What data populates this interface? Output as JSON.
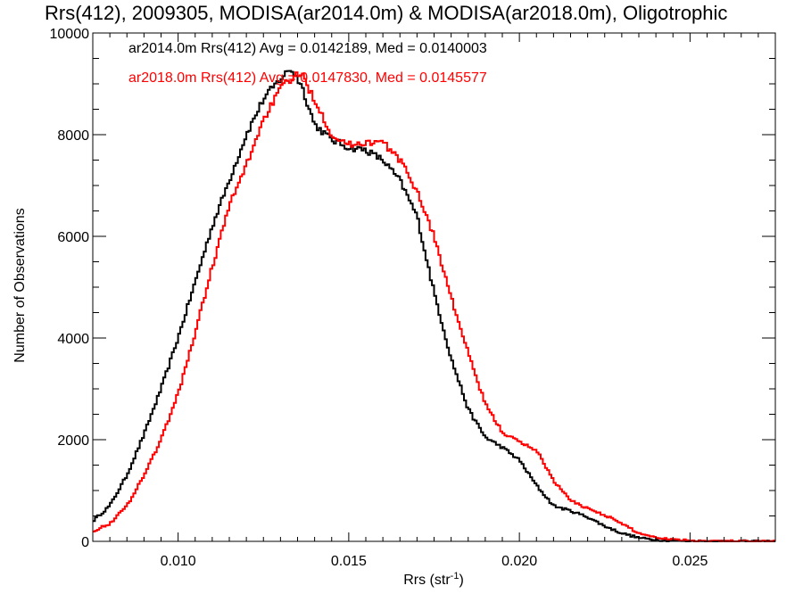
{
  "chart_data": {
    "type": "line",
    "title": "Rrs(412), 2009305, MODISA(ar2014.0m) & MODISA(ar2018.0m), Oligotrophic",
    "xlabel": "Rrs (str",
    "xlabel_superscript": "-1",
    "xlabel_suffix": ")",
    "ylabel": "Number of Observations",
    "xlim": [
      0.0075,
      0.0275
    ],
    "ylim": [
      0,
      10000
    ],
    "xticks": [
      0.01,
      0.015,
      0.02,
      0.025
    ],
    "xtick_labels": [
      "0.010",
      "0.015",
      "0.020",
      "0.025"
    ],
    "yticks": [
      0,
      2000,
      4000,
      6000,
      8000,
      10000
    ],
    "ytick_labels": [
      "0",
      "2000",
      "4000",
      "6000",
      "8000",
      "10000"
    ],
    "grid": false,
    "annotations": [
      {
        "text": "ar2014.0m Rrs(412) Avg = 0.0142189, Med = 0.0140003",
        "color": "#000000"
      },
      {
        "text": "ar2018.0m Rrs(412) Avg = 0.0147830, Med = 0.0145577",
        "color": "#ff0000"
      }
    ],
    "series": [
      {
        "color": "#000000",
        "x": [
          0.0075,
          0.008,
          0.0085,
          0.009,
          0.0095,
          0.01,
          0.0105,
          0.011,
          0.0115,
          0.012,
          0.0125,
          0.013,
          0.0133,
          0.0136,
          0.014,
          0.0145,
          0.015,
          0.0155,
          0.016,
          0.0165,
          0.017,
          0.0175,
          0.018,
          0.0185,
          0.019,
          0.0195,
          0.02,
          0.0205,
          0.021,
          0.0215,
          0.022,
          0.0225,
          0.023,
          0.0235,
          0.024,
          0.0245,
          0.025,
          0.0255,
          0.026,
          0.0265,
          0.027,
          0.0275
        ],
        "y": [
          400,
          700,
          1300,
          2100,
          3000,
          4000,
          5100,
          6200,
          7100,
          8000,
          8700,
          9100,
          9300,
          9000,
          8200,
          7900,
          7750,
          7700,
          7500,
          7100,
          6400,
          4900,
          3600,
          2600,
          2050,
          1850,
          1600,
          1100,
          700,
          600,
          480,
          300,
          160,
          70,
          30,
          15,
          8,
          4,
          2,
          1,
          0,
          0
        ]
      },
      {
        "color": "#ff0000",
        "x": [
          0.0075,
          0.008,
          0.0085,
          0.009,
          0.0095,
          0.01,
          0.0105,
          0.011,
          0.0115,
          0.012,
          0.0125,
          0.013,
          0.0133,
          0.0136,
          0.014,
          0.0145,
          0.015,
          0.0155,
          0.016,
          0.0165,
          0.017,
          0.0175,
          0.018,
          0.0185,
          0.019,
          0.0195,
          0.02,
          0.0205,
          0.021,
          0.0215,
          0.022,
          0.0225,
          0.023,
          0.0235,
          0.024,
          0.0245,
          0.025,
          0.0255,
          0.026,
          0.0265,
          0.027,
          0.0275
        ],
        "y": [
          200,
          350,
          700,
          1300,
          2000,
          2900,
          4100,
          5400,
          6600,
          7400,
          8300,
          8900,
          9100,
          9200,
          8700,
          8000,
          7800,
          7850,
          7850,
          7500,
          6900,
          6000,
          4800,
          3700,
          2700,
          2150,
          1950,
          1800,
          1200,
          800,
          650,
          520,
          350,
          160,
          80,
          40,
          18,
          8,
          4,
          2,
          1,
          0
        ]
      }
    ]
  }
}
